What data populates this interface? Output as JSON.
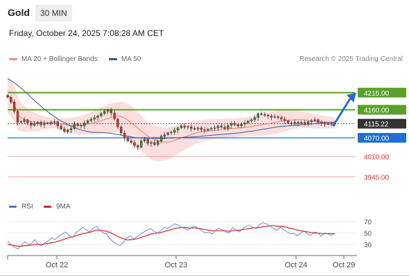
{
  "header": {
    "title": "Gold",
    "timeframe": "30 MIN",
    "datetime": "Friday, October 24, 2025 7:08:28 AM CET"
  },
  "legend": {
    "items": [
      {
        "label": "MA 20 + Bollinger Bands",
        "color": "#f28c8c"
      },
      {
        "label": "MA 50",
        "color": "#2e5b97"
      }
    ],
    "credit": "Research © 2025 Trading Central"
  },
  "chart_data": {
    "type": "candlestick",
    "x_ticks": [
      "Oct 22",
      "Oct 23",
      "Oct 24",
      "Oct 29"
    ],
    "y_range": [
      3890,
      4290
    ],
    "levels": [
      {
        "value": 4215.0,
        "label": "4215.00",
        "kind": "resistance",
        "color": "#5aa02c"
      },
      {
        "value": 4160.0,
        "label": "4160.00",
        "kind": "resistance",
        "color": "#5aa02c"
      },
      {
        "value": 4115.22,
        "label": "4115.22",
        "kind": "last_price",
        "color": "#333333"
      },
      {
        "value": 4070.0,
        "label": "4070.00",
        "kind": "pivot",
        "color": "#1f6fd6"
      },
      {
        "value": 4010.0,
        "label": "4010.00",
        "kind": "support",
        "color": "#e03030"
      },
      {
        "value": 3945.0,
        "label": "3945.00",
        "kind": "support",
        "color": "#e03030"
      }
    ],
    "arrow": {
      "from": 4110,
      "to": 4210,
      "direction": "up",
      "color": "#2b6cc4"
    },
    "candles_close": [
      4200,
      4185,
      4155,
      4120,
      4122,
      4128,
      4118,
      4110,
      4115,
      4120,
      4112,
      4118,
      4116,
      4120,
      4122,
      4108,
      4098,
      4090,
      4095,
      4100,
      4115,
      4110,
      4108,
      4118,
      4125,
      4130,
      4135,
      4140,
      4148,
      4155,
      4160,
      4150,
      4130,
      4105,
      4085,
      4070,
      4060,
      4055,
      4045,
      4040,
      4060,
      4065,
      4052,
      4055,
      4048,
      4060,
      4075,
      4080,
      4086,
      4088,
      4095,
      4102,
      4108,
      4104,
      4106,
      4100,
      4098,
      4102,
      4096,
      4094,
      4098,
      4100,
      4102,
      4108,
      4104,
      4100,
      4110,
      4116,
      4112,
      4108,
      4114,
      4118,
      4124,
      4128,
      4135,
      4148,
      4145,
      4143,
      4140,
      4136,
      4138,
      4135,
      4130,
      4125,
      4118,
      4116,
      4120,
      4117,
      4119,
      4115,
      4122,
      4125,
      4128,
      4120,
      4116,
      4115,
      4114,
      4116,
      4115
    ],
    "ma50": [
      4260,
      4253,
      4245,
      4236,
      4226,
      4216,
      4205,
      4194,
      4183,
      4173,
      4163,
      4154,
      4145,
      4137,
      4129,
      4122,
      4116,
      4110,
      4105,
      4100,
      4096,
      4093,
      4090,
      4088,
      4087,
      4087,
      4087,
      4086,
      4085,
      4083,
      4081,
      4079,
      4077,
      4075,
      4073,
      4071,
      4070,
      4069,
      4068,
      4068,
      4068,
      4068,
      4068,
      4068,
      4069,
      4069,
      4070,
      4070,
      4071,
      4072,
      4072,
      4073,
      4074,
      4075,
      4076,
      4077,
      4078,
      4079,
      4080,
      4081,
      4082,
      4083,
      4084,
      4085,
      4086,
      4088,
      4090,
      4091,
      4093,
      4095,
      4097,
      4099,
      4101,
      4103,
      4105,
      4106,
      4107,
      4108,
      4109,
      4110,
      4111,
      4112,
      4113,
      4114,
      4115,
      4116,
      4117,
      4118,
      4119,
      4120,
      4120
    ],
    "ma20": [
      4208,
      4195,
      4170,
      4142,
      4132,
      4128,
      4124,
      4121,
      4120,
      4119,
      4118,
      4117,
      4117,
      4117,
      4116,
      4114,
      4112,
      4110,
      4109,
      4109,
      4110,
      4112,
      4114,
      4116,
      4119,
      4122,
      4126,
      4130,
      4134,
      4138,
      4140,
      4139,
      4134,
      4127,
      4118,
      4110,
      4100,
      4090,
      4081,
      4072,
      4066,
      4062,
      4058,
      4057,
      4056,
      4058,
      4062,
      4066,
      4070,
      4074,
      4078,
      4082,
      4086,
      4088,
      4090,
      4092,
      4093,
      4094,
      4096,
      4097,
      4098,
      4099,
      4100,
      4101,
      4102,
      4103,
      4104,
      4106,
      4108,
      4110,
      4112,
      4114,
      4116,
      4118,
      4120,
      4123,
      4125,
      4126,
      4127,
      4128,
      4128,
      4128,
      4127,
      4126,
      4124,
      4123,
      4122,
      4121,
      4120,
      4119,
      4118
    ],
    "bb_upper": [
      4270,
      4255,
      4230,
      4195,
      4178,
      4168,
      4160,
      4153,
      4148,
      4143,
      4139,
      4136,
      4134,
      4133,
      4133,
      4133,
      4133,
      4134,
      4135,
      4137,
      4140,
      4144,
      4148,
      4153,
      4158,
      4163,
      4168,
      4173,
      4178,
      4182,
      4185,
      4186,
      4184,
      4180,
      4172,
      4162,
      4150,
      4138,
      4126,
      4116,
      4110,
      4106,
      4104,
      4103,
      4104,
      4106,
      4109,
      4112,
      4116,
      4119,
      4122,
      4124,
      4126,
      4127,
      4128,
      4129,
      4129,
      4130,
      4130,
      4131,
      4131,
      4132,
      4132,
      4133,
      4134,
      4135,
      4137,
      4139,
      4141,
      4143,
      4146,
      4149,
      4152,
      4155,
      4157,
      4159,
      4160,
      4160,
      4159,
      4158,
      4157,
      4155,
      4153,
      4151,
      4148,
      4145,
      4143,
      4141,
      4139,
      4137,
      4135
    ],
    "bb_lower": [
      4150,
      4138,
      4115,
      4092,
      4090,
      4090,
      4090,
      4090,
      4091,
      4093,
      4096,
      4098,
      4100,
      4101,
      4099,
      4095,
      4090,
      4085,
      4082,
      4080,
      4079,
      4079,
      4080,
      4080,
      4081,
      4082,
      4083,
      4084,
      4085,
      4087,
      4089,
      4087,
      4080,
      4068,
      4055,
      4045,
      4035,
      4025,
      4015,
      4005,
      3998,
      3995,
      3995,
      3997,
      4000,
      4005,
      4012,
      4020,
      4027,
      4034,
      4040,
      4047,
      4053,
      4056,
      4058,
      4061,
      4064,
      4066,
      4068,
      4070,
      4071,
      4072,
      4073,
      4074,
      4075,
      4075,
      4075,
      4075,
      4075,
      4076,
      4077,
      4078,
      4079,
      4080,
      4083,
      4087,
      4091,
      4093,
      4096,
      4099,
      4100,
      4101,
      4101,
      4101,
      4100,
      4100,
      4100,
      4100,
      4100,
      4100,
      4100
    ],
    "rsi_panel": {
      "legend": [
        {
          "label": "RSI",
          "color": "#4f6fd6"
        },
        {
          "label": "9MA",
          "color": "#e02020"
        }
      ],
      "levels": [
        {
          "value": 70,
          "label": "70"
        },
        {
          "value": 50,
          "label": "50"
        },
        {
          "value": 30,
          "label": "30"
        }
      ],
      "rsi": [
        35,
        30,
        25,
        22,
        28,
        35,
        30,
        32,
        38,
        30,
        28,
        33,
        37,
        42,
        38,
        45,
        48,
        52,
        46,
        42,
        50,
        55,
        60,
        56,
        52,
        58,
        62,
        55,
        50,
        48,
        40,
        35,
        30,
        28,
        34,
        42,
        45,
        40,
        44,
        48,
        52,
        55,
        58,
        53,
        50,
        55,
        60,
        58,
        62,
        66,
        64,
        60,
        58,
        55,
        60,
        62,
        58,
        54,
        50,
        52,
        48,
        55,
        58,
        56,
        52,
        50,
        60,
        55,
        52,
        58,
        62,
        64,
        60,
        58,
        65,
        68,
        66,
        62,
        58,
        55,
        60,
        56,
        52,
        48,
        50,
        45,
        50,
        54,
        48,
        46,
        52,
        50,
        44,
        50,
        48,
        46,
        50
      ],
      "ma9": [
        30,
        29,
        28,
        27,
        27,
        28,
        28,
        29,
        30,
        30,
        30,
        31,
        32,
        33,
        34,
        36,
        38,
        40,
        42,
        43,
        45,
        47,
        49,
        50,
        51,
        53,
        55,
        55,
        54,
        53,
        51,
        48,
        45,
        42,
        40,
        38,
        38,
        39,
        40,
        42,
        44,
        46,
        48,
        49,
        50,
        51,
        53,
        54,
        56,
        58,
        59,
        60,
        60,
        59,
        59,
        59,
        58,
        57,
        56,
        55,
        54,
        54,
        54,
        54,
        54,
        53,
        54,
        55,
        55,
        56,
        57,
        58,
        59,
        59,
        60,
        61,
        62,
        63,
        63,
        62,
        62,
        61,
        60,
        58,
        57,
        55,
        54,
        53,
        52,
        51,
        50,
        50,
        49,
        49,
        49,
        49,
        49
      ]
    }
  }
}
